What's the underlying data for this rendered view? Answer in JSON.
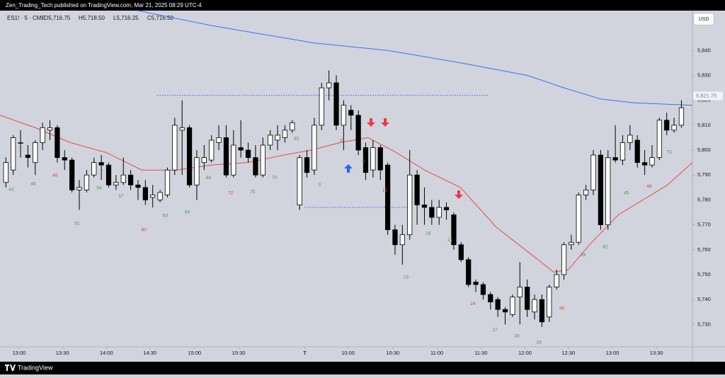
{
  "header": {
    "publisher": "Zen_Trading_Tech published on TradingView.com, Mar 21, 2025 08:29 UTC-4",
    "brand": "TradingView"
  },
  "chart_data": {
    "type": "candlestick",
    "legend": {
      "symbol": "ES1! · 5 · CME",
      "open": "O5,716.75",
      "high": "H5,718.50",
      "low": "L5,716.25",
      "close": "C5,716.50"
    },
    "currency": "USD",
    "up_color": "#ffffff",
    "down_color": "#000000",
    "grid": false,
    "xlim": [
      -0.8,
      93.5
    ],
    "ylim": [
      5721,
      5856
    ],
    "yticks": [
      {
        "value": 5730,
        "label": "5,730"
      },
      {
        "value": 5740,
        "label": "5,740"
      },
      {
        "value": 5750,
        "label": "5,750"
      },
      {
        "value": 5760,
        "label": "5,760"
      },
      {
        "value": 5770,
        "label": "5,770"
      },
      {
        "value": 5780,
        "label": "5,780"
      },
      {
        "value": 5790,
        "label": "5,790"
      },
      {
        "value": 5800,
        "label": "5,800"
      },
      {
        "value": 5810,
        "label": "5,810"
      },
      {
        "value": 5820,
        "label": "5,820"
      },
      {
        "value": 5830,
        "label": "5,830"
      },
      {
        "value": 5840,
        "label": "5,840"
      }
    ],
    "xticks": [
      {
        "value": 1.8,
        "label": "13:00"
      },
      {
        "value": 7.7,
        "label": "13:30"
      },
      {
        "value": 13.7,
        "label": "14:00"
      },
      {
        "value": 19.6,
        "label": "14:30"
      },
      {
        "value": 25.7,
        "label": "15:00"
      },
      {
        "value": 31.7,
        "label": "15:30"
      },
      {
        "value": 40.7,
        "label": "7"
      },
      {
        "value": 46.6,
        "label": "10:00"
      },
      {
        "value": 52.7,
        "label": "10:30"
      },
      {
        "value": 58.7,
        "label": "11:00"
      },
      {
        "value": 64.7,
        "label": "11:30"
      },
      {
        "value": 70.7,
        "label": "12:00"
      },
      {
        "value": 76.6,
        "label": "12:30"
      },
      {
        "value": 82.6,
        "label": "13:00"
      },
      {
        "value": 88.6,
        "label": "13:30"
      }
    ],
    "last_price": {
      "value": 5821.75,
      "label": "5,821.75"
    },
    "candles": [
      [
        5787,
        5797,
        5785,
        5795
      ],
      [
        5792,
        5806,
        5790,
        5805
      ],
      [
        5803,
        5808,
        5797,
        5803
      ],
      [
        5798,
        5802,
        5793,
        5797
      ],
      [
        5795,
        5804,
        5790,
        5803
      ],
      [
        5803,
        5811,
        5800,
        5809
      ],
      [
        5808,
        5812,
        5804,
        5809
      ],
      [
        5809,
        5810,
        5795,
        5797
      ],
      [
        5797,
        5800,
        5792,
        5796
      ],
      [
        5796,
        5797,
        5783,
        5784
      ],
      [
        5784,
        5788,
        5776,
        5785
      ],
      [
        5784,
        5792,
        5783,
        5790
      ],
      [
        5790,
        5797,
        5789,
        5795
      ],
      [
        5795,
        5798,
        5788,
        5794
      ],
      [
        5794,
        5795,
        5785,
        5786
      ],
      [
        5786,
        5790,
        5784,
        5787
      ],
      [
        5787,
        5797,
        5786,
        5790
      ],
      [
        5790,
        5792,
        5784,
        5786
      ],
      [
        5786,
        5788,
        5780,
        5785
      ],
      [
        5785,
        5788,
        5778,
        5780
      ],
      [
        5781,
        5786,
        5777,
        5782
      ],
      [
        5780,
        5784,
        5779,
        5783
      ],
      [
        5782,
        5793,
        5781,
        5792
      ],
      [
        5792,
        5813,
        5790,
        5810
      ],
      [
        5808,
        5820,
        5790,
        5809
      ],
      [
        5809,
        5810,
        5785,
        5786
      ],
      [
        5786,
        5800,
        5780,
        5797
      ],
      [
        5795,
        5802,
        5792,
        5797
      ],
      [
        5796,
        5806,
        5795,
        5804
      ],
      [
        5803,
        5810,
        5800,
        5805
      ],
      [
        5805,
        5810,
        5789,
        5790
      ],
      [
        5790,
        5808,
        5789,
        5802
      ],
      [
        5801,
        5812,
        5797,
        5800
      ],
      [
        5800,
        5803,
        5795,
        5797
      ],
      [
        5797,
        5802,
        5789,
        5790
      ],
      [
        5790,
        5805,
        5789,
        5802
      ],
      [
        5802,
        5808,
        5800,
        5806
      ],
      [
        5804,
        5810,
        5800,
        5806
      ],
      [
        5805,
        5810,
        5803,
        5808
      ],
      [
        5808,
        5812,
        5807,
        5811
      ],
      [
        5778,
        5798,
        5776,
        5797
      ],
      [
        5797,
        5800,
        5789,
        5791
      ],
      [
        5792,
        5813,
        5790,
        5810
      ],
      [
        5810,
        5827,
        5808,
        5825
      ],
      [
        5825,
        5832,
        5820,
        5827
      ],
      [
        5827,
        5830,
        5808,
        5810
      ],
      [
        5810,
        5820,
        5800,
        5818
      ],
      [
        5816,
        5818,
        5808,
        5814
      ],
      [
        5814,
        5816,
        5798,
        5800
      ],
      [
        5801,
        5803,
        5788,
        5791
      ],
      [
        5792,
        5804,
        5789,
        5801
      ],
      [
        5801,
        5802,
        5788,
        5792
      ],
      [
        5794,
        5795,
        5766,
        5768
      ],
      [
        5768,
        5770,
        5758,
        5762
      ],
      [
        5762,
        5770,
        5754,
        5766
      ],
      [
        5766,
        5800,
        5764,
        5790
      ],
      [
        5790,
        5792,
        5770,
        5778
      ],
      [
        5778,
        5785,
        5770,
        5777
      ],
      [
        5777,
        5780,
        5770,
        5773
      ],
      [
        5773,
        5780,
        5770,
        5777
      ],
      [
        5777,
        5779,
        5772,
        5776
      ],
      [
        5774,
        5775,
        5760,
        5762
      ],
      [
        5762,
        5763,
        5755,
        5756
      ],
      [
        5756,
        5757,
        5745,
        5746
      ],
      [
        5747,
        5748,
        5743,
        5746
      ],
      [
        5746,
        5747,
        5740,
        5742
      ],
      [
        5742,
        5743,
        5736,
        5739
      ],
      [
        5740,
        5741,
        5733,
        5736
      ],
      [
        5736,
        5737,
        5730,
        5735
      ],
      [
        5734,
        5742,
        5733,
        5741
      ],
      [
        5741,
        5755,
        5730,
        5745
      ],
      [
        5745,
        5748,
        5733,
        5736
      ],
      [
        5735,
        5742,
        5732,
        5740
      ],
      [
        5740,
        5742,
        5729,
        5731
      ],
      [
        5733,
        5746,
        5731,
        5745
      ],
      [
        5745,
        5752,
        5744,
        5750
      ],
      [
        5750,
        5763,
        5748,
        5762
      ],
      [
        5762,
        5766,
        5760,
        5763
      ],
      [
        5763,
        5783,
        5762,
        5782
      ],
      [
        5782,
        5786,
        5780,
        5784
      ],
      [
        5784,
        5800,
        5782,
        5798
      ],
      [
        5798,
        5800,
        5768,
        5770
      ],
      [
        5770,
        5800,
        5768,
        5797
      ],
      [
        5797,
        5810,
        5795,
        5796
      ],
      [
        5796,
        5806,
        5794,
        5803
      ],
      [
        5803,
        5810,
        5800,
        5806
      ],
      [
        5804,
        5806,
        5793,
        5795
      ],
      [
        5795,
        5800,
        5790,
        5794
      ],
      [
        5794,
        5802,
        5793,
        5797
      ],
      [
        5797,
        5813,
        5796,
        5812
      ],
      [
        5812,
        5815,
        5806,
        5808
      ],
      [
        5808,
        5813,
        5807,
        5810
      ],
      [
        5810,
        5820,
        5809,
        5817
      ]
    ],
    "lines": [
      {
        "color": "#3f6ff0",
        "x": [
          18,
          28,
          42,
          52,
          62,
          71,
          76,
          81,
          85.5,
          93.5
        ],
        "values": [
          5856,
          5850,
          5843,
          5840,
          5835,
          5830,
          5825,
          5820.5,
          5819,
          5818
        ]
      },
      {
        "color": "#e24d4d",
        "x": [
          -0.8,
          4,
          8.8,
          13.7,
          18.5,
          23.3,
          28,
          32.9,
          37.8,
          41.6,
          45.5,
          49.3,
          53.2,
          57,
          61.9,
          66.8,
          71.6,
          74.6,
          76.6,
          79.5,
          83.4,
          86.2,
          90.1,
          93.5
        ],
        "values": [
          5814,
          5809,
          5803,
          5799,
          5792,
          5792,
          5794,
          5795,
          5798,
          5800,
          5803,
          5805,
          5799,
          5792,
          5785,
          5769,
          5758,
          5751,
          5752,
          5762,
          5774,
          5779,
          5786,
          5795
        ]
      }
    ],
    "levels": [
      {
        "value": 5822,
        "from": 20.6,
        "to": 65.7,
        "color": "#2962ff"
      },
      {
        "value": 5777,
        "from": 40.7,
        "to": 54.7,
        "color": "#2962ff"
      }
    ],
    "annotations": [
      {
        "x": 0.74,
        "y": 5784.1,
        "text": "42",
        "color": "#3f9a45"
      },
      {
        "x": 3.73,
        "y": 5786.4,
        "text": "46",
        "color": "#3f9a45"
      },
      {
        "x": 9.71,
        "y": 5770.5,
        "text": "51",
        "color": "#3f9a45"
      },
      {
        "x": 12.7,
        "y": 5784.7,
        "text": "54",
        "color": "#3f9a45"
      },
      {
        "x": 15.7,
        "y": 5781.5,
        "text": "57",
        "color": "#3f9a45"
      },
      {
        "x": 21.7,
        "y": 5773.6,
        "text": "63",
        "color": "#3f9a45"
      },
      {
        "x": 24.7,
        "y": 5775.0,
        "text": "64",
        "color": "#3f9a45"
      },
      {
        "x": 27.6,
        "y": 5788.9,
        "text": "69",
        "color": "#3f9a45"
      },
      {
        "x": 33.6,
        "y": 5783.2,
        "text": "75",
        "color": "#3f9a45"
      },
      {
        "x": 36.6,
        "y": 5788.9,
        "text": "70",
        "color": "#3f9a45"
      },
      {
        "x": 39.6,
        "y": 5804.6,
        "text": "81",
        "color": "#3f9a45"
      },
      {
        "x": 42.7,
        "y": 5786.1,
        "text": "3",
        "color": "#3f9a45"
      },
      {
        "x": 45.7,
        "y": 5803.7,
        "text": "6",
        "color": "#3f9a45"
      },
      {
        "x": 48.7,
        "y": 5795.5,
        "text": "9",
        "color": "#3f9a45"
      },
      {
        "x": 54.5,
        "y": 5748.9,
        "text": "15",
        "color": "#3f9a45"
      },
      {
        "x": 57.5,
        "y": 5766.5,
        "text": "18",
        "color": "#3f9a45"
      },
      {
        "x": 60.5,
        "y": 5763.9,
        "text": "21",
        "color": "#3f9a45"
      },
      {
        "x": 66.6,
        "y": 5727.8,
        "text": "27",
        "color": "#3f9a45"
      },
      {
        "x": 69.6,
        "y": 5725.3,
        "text": "30",
        "color": "#3f9a45"
      },
      {
        "x": 72.6,
        "y": 5722.7,
        "text": "33",
        "color": "#3f9a45"
      },
      {
        "x": 78.6,
        "y": 5757.9,
        "text": "39",
        "color": "#3f9a45"
      },
      {
        "x": 81.6,
        "y": 5761.1,
        "text": "42",
        "color": "#3f9a45"
      },
      {
        "x": 84.5,
        "y": 5782.7,
        "text": "45",
        "color": "#3f9a45"
      },
      {
        "x": 90.4,
        "y": 5799.2,
        "text": "51",
        "color": "#3f9a45"
      },
      {
        "x": 6.7,
        "y": 5789.8,
        "text": "48",
        "color": "#e0433f"
      },
      {
        "x": 18.8,
        "y": 5767.9,
        "text": "60",
        "color": "#e0433f"
      },
      {
        "x": 30.6,
        "y": 5782.7,
        "text": "72",
        "color": "#e0433f"
      },
      {
        "x": 51.6,
        "y": 5783.8,
        "text": "12",
        "color": "#e0433f"
      },
      {
        "x": 63.6,
        "y": 5738.3,
        "text": "24",
        "color": "#e0433f"
      },
      {
        "x": 75.7,
        "y": 5736.4,
        "text": "36",
        "color": "#e0433f"
      },
      {
        "x": 87.6,
        "y": 5785.5,
        "text": "48",
        "color": "#e0433f"
      }
    ]
  }
}
